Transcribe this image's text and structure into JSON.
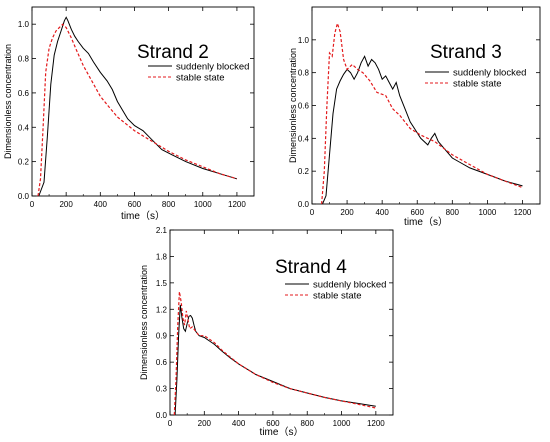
{
  "chart_data": [
    {
      "type": "line",
      "title": "Strand 2",
      "xlabel": "time（s）",
      "ylabel": "Dimensionless concentration",
      "xlim": [
        0,
        1300
      ],
      "ylim": [
        0,
        1.1
      ],
      "xticks": [
        "0",
        "200",
        "400",
        "600",
        "800",
        "1000",
        "1200"
      ],
      "yticks": [
        "0.0",
        "0.2",
        "0.4",
        "0.6",
        "0.8",
        "1.0"
      ],
      "legend": "top-right",
      "series": [
        {
          "name": "suddenly blocked",
          "color": "#000000",
          "style": "solid",
          "x": [
            40,
            70,
            90,
            110,
            130,
            150,
            170,
            190,
            200,
            210,
            230,
            250,
            270,
            300,
            330,
            360,
            400,
            440,
            470,
            500,
            530,
            560,
            600,
            650,
            700,
            760,
            820,
            900,
            1000,
            1100,
            1200
          ],
          "y": [
            0.0,
            0.08,
            0.35,
            0.65,
            0.82,
            0.9,
            0.96,
            1.02,
            1.04,
            1.02,
            0.97,
            0.93,
            0.9,
            0.86,
            0.83,
            0.78,
            0.72,
            0.67,
            0.62,
            0.55,
            0.5,
            0.45,
            0.41,
            0.38,
            0.33,
            0.27,
            0.24,
            0.2,
            0.16,
            0.13,
            0.1
          ]
        },
        {
          "name": "stable state",
          "color": "#e31a1c",
          "style": "dashed",
          "x": [
            35,
            50,
            65,
            80,
            100,
            120,
            140,
            160,
            180,
            200,
            230,
            260,
            300,
            350,
            400,
            450,
            500,
            550,
            600,
            650,
            700,
            800,
            900,
            1000,
            1100,
            1200
          ],
          "y": [
            0.0,
            0.1,
            0.4,
            0.72,
            0.86,
            0.92,
            0.96,
            0.98,
            1.0,
            0.98,
            0.92,
            0.85,
            0.76,
            0.67,
            0.58,
            0.52,
            0.46,
            0.42,
            0.38,
            0.35,
            0.32,
            0.26,
            0.21,
            0.17,
            0.13,
            0.1
          ]
        }
      ]
    },
    {
      "type": "line",
      "title": "Strand 3",
      "xlabel": "time（s）",
      "ylabel": "Dimensionless concentration",
      "xlim": [
        0,
        1300
      ],
      "ylim": [
        0,
        1.2
      ],
      "xticks": [
        "0",
        "200",
        "400",
        "600",
        "800",
        "1000",
        "1200"
      ],
      "yticks": [
        "0.0",
        "0.2",
        "0.4",
        "0.6",
        "0.8",
        "1.0"
      ],
      "legend": "top-right",
      "series": [
        {
          "name": "suddenly blocked",
          "color": "#000000",
          "style": "solid",
          "x": [
            60,
            80,
            100,
            120,
            140,
            160,
            180,
            200,
            220,
            240,
            260,
            280,
            300,
            320,
            340,
            360,
            380,
            400,
            420,
            440,
            460,
            480,
            500,
            530,
            560,
            590,
            620,
            660,
            680,
            700,
            720,
            760,
            800,
            850,
            900,
            1000,
            1100,
            1200
          ],
          "y": [
            0.0,
            0.05,
            0.3,
            0.55,
            0.7,
            0.75,
            0.79,
            0.82,
            0.8,
            0.76,
            0.8,
            0.86,
            0.9,
            0.84,
            0.88,
            0.86,
            0.82,
            0.76,
            0.78,
            0.74,
            0.7,
            0.74,
            0.66,
            0.58,
            0.5,
            0.45,
            0.4,
            0.36,
            0.4,
            0.43,
            0.38,
            0.33,
            0.28,
            0.25,
            0.22,
            0.18,
            0.14,
            0.11
          ]
        },
        {
          "name": "stable state",
          "color": "#e31a1c",
          "style": "dashed",
          "x": [
            55,
            70,
            85,
            100,
            115,
            130,
            145,
            160,
            180,
            200,
            230,
            260,
            290,
            330,
            370,
            420,
            460,
            500,
            560,
            620,
            700,
            800,
            900,
            1000,
            1100,
            1200
          ],
          "y": [
            0.0,
            0.2,
            0.6,
            0.92,
            0.9,
            1.04,
            1.1,
            1.05,
            0.88,
            0.82,
            0.85,
            0.82,
            0.8,
            0.75,
            0.68,
            0.66,
            0.58,
            0.54,
            0.46,
            0.42,
            0.38,
            0.3,
            0.24,
            0.18,
            0.14,
            0.1
          ]
        }
      ]
    },
    {
      "type": "line",
      "title": "Strand 4",
      "xlabel": "time（s）",
      "ylabel": "Dimensionless concentration",
      "xlim": [
        0,
        1300
      ],
      "ylim": [
        0,
        2.1
      ],
      "xticks": [
        "0",
        "200",
        "400",
        "600",
        "800",
        "1000",
        "1200"
      ],
      "yticks": [
        "0.0",
        "0.3",
        "0.6",
        "0.9",
        "1.2",
        "1.5",
        "1.8",
        "2.1"
      ],
      "legend": "top-right",
      "series": [
        {
          "name": "suddenly blocked",
          "color": "#000000",
          "style": "solid",
          "x": [
            30,
            40,
            50,
            60,
            70,
            80,
            90,
            100,
            110,
            120,
            130,
            140,
            150,
            170,
            200,
            230,
            260,
            300,
            350,
            400,
            450,
            500,
            600,
            700,
            800,
            900,
            1000,
            1100,
            1200
          ],
          "y": [
            0.0,
            0.4,
            0.9,
            1.25,
            1.1,
            0.98,
            0.95,
            1.04,
            1.12,
            1.13,
            1.1,
            1.02,
            0.95,
            0.9,
            0.88,
            0.84,
            0.8,
            0.73,
            0.65,
            0.58,
            0.52,
            0.46,
            0.38,
            0.3,
            0.25,
            0.2,
            0.16,
            0.13,
            0.1
          ]
        },
        {
          "name": "stable state",
          "color": "#e31a1c",
          "style": "dashed",
          "x": [
            25,
            35,
            45,
            55,
            65,
            75,
            85,
            95,
            105,
            115,
            130,
            150,
            170,
            200,
            230,
            260,
            300,
            350,
            400,
            450,
            500,
            600,
            700,
            800,
            900,
            1000,
            1100,
            1200
          ],
          "y": [
            0.0,
            0.4,
            1.0,
            1.4,
            1.28,
            1.1,
            1.02,
            1.18,
            1.08,
            0.98,
            1.0,
            0.95,
            0.9,
            0.9,
            0.86,
            0.82,
            0.74,
            0.66,
            0.58,
            0.52,
            0.46,
            0.37,
            0.3,
            0.25,
            0.2,
            0.16,
            0.12,
            0.08
          ]
        }
      ]
    }
  ]
}
